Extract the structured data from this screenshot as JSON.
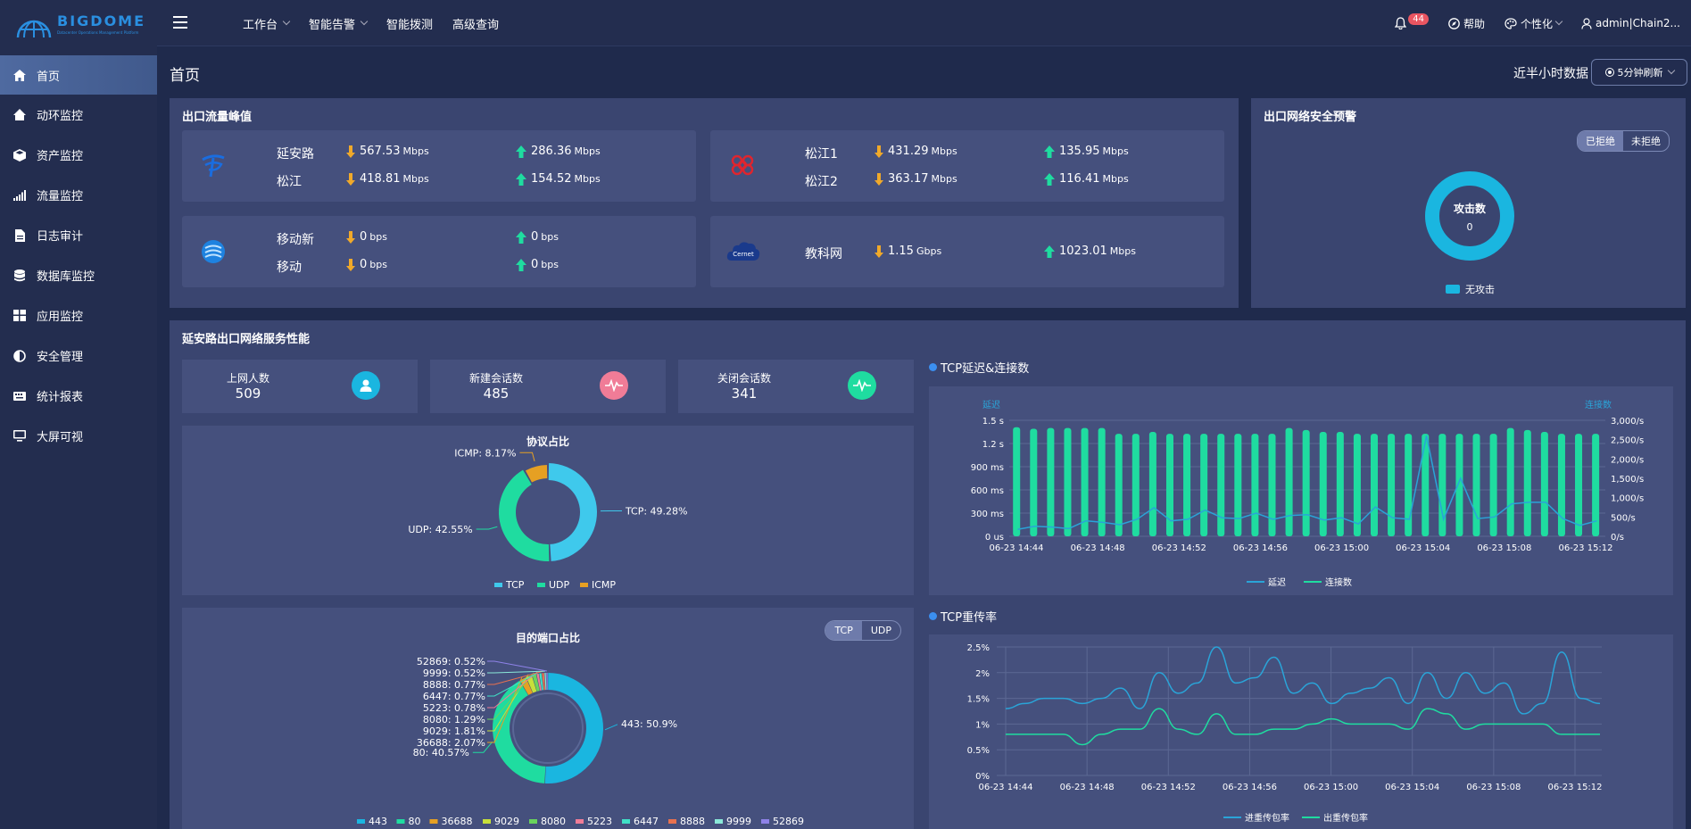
{
  "app": {
    "logo_text": "BIGDOME",
    "logo_subtext": "Datacenter Operations Management Platform"
  },
  "sidebar": {
    "items": [
      {
        "label": "首页",
        "icon": "home-icon"
      },
      {
        "label": "动环监控",
        "icon": "house-icon"
      },
      {
        "label": "资产监控",
        "icon": "box-icon"
      },
      {
        "label": "流量监控",
        "icon": "signal-icon"
      },
      {
        "label": "日志审计",
        "icon": "file-icon"
      },
      {
        "label": "数据库监控",
        "icon": "database-icon"
      },
      {
        "label": "应用监控",
        "icon": "grid-icon"
      },
      {
        "label": "安全管理",
        "icon": "half-circle-icon"
      },
      {
        "label": "统计报表",
        "icon": "keyboard-icon"
      },
      {
        "label": "大屏可视",
        "icon": "monitor-icon"
      }
    ]
  },
  "topbar": {
    "nav": [
      "工作台",
      "智能告警",
      "智能拨测",
      "高级查询"
    ],
    "notification_count": "44",
    "help": "帮助",
    "personalize": "个性化",
    "user": "admin|Chain2..."
  },
  "page": {
    "title": "首页",
    "half_hour": "近半小时数据",
    "refresh": "5分钟刷新"
  },
  "egress": {
    "title": "出口流量峰值",
    "cards": [
      {
        "rows": [
          {
            "name": "延安路",
            "down": "567.53",
            "down_unit": "Mbps",
            "up": "286.36",
            "up_unit": "Mbps"
          },
          {
            "name": "松江",
            "down": "418.81",
            "down_unit": "Mbps",
            "up": "154.52",
            "up_unit": "Mbps"
          }
        ]
      },
      {
        "rows": [
          {
            "name": "松江1",
            "down": "431.29",
            "down_unit": "Mbps",
            "up": "135.95",
            "up_unit": "Mbps"
          },
          {
            "name": "松江2",
            "down": "363.17",
            "down_unit": "Mbps",
            "up": "116.41",
            "up_unit": "Mbps"
          }
        ]
      },
      {
        "rows": [
          {
            "name": "移动新",
            "down": "0",
            "down_unit": "bps",
            "up": "0",
            "up_unit": "bps"
          },
          {
            "name": "移动",
            "down": "0",
            "down_unit": "bps",
            "up": "0",
            "up_unit": "bps"
          }
        ]
      },
      {
        "rows": [
          {
            "name": "教科网",
            "down": "1.15",
            "down_unit": "Gbps",
            "up": "1023.01",
            "up_unit": "Mbps"
          }
        ]
      }
    ],
    "cernet_label": "Cernet"
  },
  "security": {
    "title": "出口网络安全预警",
    "tabs": [
      "已拒绝",
      "未拒绝"
    ],
    "donut_label": "攻击数",
    "donut_value": "0",
    "legend": "无攻击",
    "color": "#1ab6e0"
  },
  "perf": {
    "title": "延安路出口网络服务性能",
    "stats": [
      {
        "label": "上网人数",
        "value": "509"
      },
      {
        "label": "新建会话数",
        "value": "485"
      },
      {
        "label": "关闭会话数",
        "value": "341"
      }
    ]
  },
  "chart_data": [
    {
      "type": "pie",
      "title": "协议占比",
      "labels": [
        "TCP",
        "UDP",
        "ICMP"
      ],
      "values": [
        49.28,
        42.55,
        8.17
      ],
      "slice_labels": [
        "TCP: 49.28%",
        "UDP: 42.55%",
        "ICMP: 8.17%"
      ],
      "colors": [
        "#3fc9ec",
        "#1fdca0",
        "#e6a023"
      ]
    },
    {
      "type": "pie",
      "title": "目的端口占比",
      "tabs": [
        "TCP",
        "UDP"
      ],
      "labels": [
        "443",
        "80",
        "36688",
        "9029",
        "8080",
        "5223",
        "6447",
        "8888",
        "9999",
        "52869"
      ],
      "values": [
        50.9,
        40.57,
        2.07,
        1.81,
        1.29,
        0.78,
        0.77,
        0.77,
        0.52,
        0.52
      ],
      "slice_labels": [
        "443: 50.9%",
        "80: 40.57%",
        "36688: 2.07%",
        "9029: 1.81%",
        "8080: 1.29%",
        "5223: 0.78%",
        "6447: 0.77%",
        "8888: 0.77%",
        "9999: 0.52%",
        "52869: 0.52%"
      ],
      "colors": [
        "#1ab6e0",
        "#1fdca0",
        "#e6a023",
        "#c7e03a",
        "#69d35c",
        "#f07c97",
        "#3fe0c6",
        "#e8714f",
        "#8ae8d8",
        "#8e82e8"
      ]
    },
    {
      "type": "bar",
      "title": "TCP延迟&连接数",
      "ylabel_left": "延迟",
      "ylabel_right": "连接数",
      "x_ticks": [
        "06-23 14:44",
        "06-23 14:48",
        "06-23 14:52",
        "06-23 14:56",
        "06-23 15:00",
        "06-23 15:04",
        "06-23 15:08",
        "06-23 15:12"
      ],
      "y_left_ticks": [
        "0 us",
        "300 ms",
        "600 ms",
        "900 ms",
        "1.2 s",
        "1.5 s"
      ],
      "y_right_ticks": [
        "0/s",
        "500/s",
        "1,000/s",
        "1,500/s",
        "2,000/s",
        "2,500/s",
        "3,000/s"
      ],
      "ylim_right": [
        0,
        3000
      ],
      "ylim_left_ms": [
        0,
        1500
      ],
      "series": [
        {
          "name": "延迟",
          "type": "line",
          "color": "#2aa4d8",
          "values": [
            90,
            130,
            120,
            100,
            200,
            180,
            150,
            220,
            370,
            200,
            220,
            340,
            240,
            230,
            300,
            220,
            270,
            280,
            210,
            240,
            160,
            380,
            240,
            220,
            1300,
            220,
            750,
            230,
            250,
            420,
            440,
            440,
            230,
            140,
            200
          ]
        },
        {
          "name": "连接数",
          "type": "bar",
          "color": "#1fdca0",
          "values": [
            2820,
            2780,
            2800,
            2800,
            2800,
            2800,
            2650,
            2650,
            2700,
            2650,
            2650,
            2650,
            2650,
            2650,
            2650,
            2650,
            2800,
            2750,
            2700,
            2700,
            2650,
            2650,
            2650,
            2650,
            2650,
            2650,
            2650,
            2650,
            2650,
            2800,
            2750,
            2700,
            2650,
            2650,
            2650
          ]
        }
      ]
    },
    {
      "type": "line",
      "title": "TCP重传率",
      "x_ticks": [
        "06-23 14:44",
        "06-23 14:48",
        "06-23 14:52",
        "06-23 14:56",
        "06-23 15:00",
        "06-23 15:04",
        "06-23 15:08",
        "06-23 15:12"
      ],
      "y_ticks": [
        "0%",
        "0.5%",
        "1%",
        "1.5%",
        "2%",
        "2.5%"
      ],
      "ylim": [
        0,
        2.5
      ],
      "series": [
        {
          "name": "进重传包率",
          "color": "#2aa4d8",
          "values": [
            1.3,
            1.4,
            1.5,
            1.5,
            1.4,
            1.5,
            1.7,
            1.3,
            2.0,
            1.6,
            1.8,
            2.5,
            1.8,
            1.9,
            2.3,
            1.6,
            1.8,
            1.4,
            1.6,
            1.7,
            1.9,
            1.4,
            2.0,
            1.5,
            2.0,
            1.6,
            1.8,
            1.2,
            1.4,
            2.4,
            1.5,
            1.4
          ]
        },
        {
          "name": "出重传包率",
          "color": "#1fdca0",
          "values": [
            0.8,
            0.8,
            0.8,
            0.8,
            0.6,
            0.8,
            0.9,
            0.9,
            1.3,
            0.9,
            0.8,
            1.2,
            0.8,
            0.8,
            0.9,
            0.9,
            1.0,
            1.1,
            1.0,
            1.0,
            1.0,
            0.9,
            1.3,
            1.2,
            0.9,
            1.0,
            1.0,
            1.0,
            1.0,
            0.8,
            0.8,
            0.8
          ]
        }
      ]
    }
  ]
}
